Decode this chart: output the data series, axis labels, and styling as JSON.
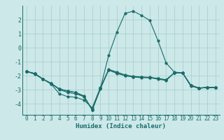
{
  "xlabel": "Humidex (Indice chaleur)",
  "background_color": "#cce8e8",
  "grid_color": "#aed0d0",
  "line_color": "#1a6b6b",
  "x_values": [
    0,
    1,
    2,
    3,
    4,
    5,
    6,
    7,
    8,
    9,
    10,
    11,
    12,
    13,
    14,
    15,
    16,
    17,
    18,
    19,
    20,
    21,
    22,
    23
  ],
  "series": [
    [
      -1.7,
      -1.85,
      -2.25,
      -2.6,
      -3.3,
      -3.5,
      -3.55,
      -3.75,
      -4.3,
      -2.85,
      -1.6,
      -1.85,
      -2.0,
      -2.1,
      -2.1,
      -2.15,
      -2.2,
      -2.3,
      -1.8,
      -1.8,
      -2.75,
      -2.9,
      -2.85,
      -2.85
    ],
    [
      -1.7,
      -1.85,
      -2.25,
      -2.55,
      -3.0,
      -3.2,
      -3.3,
      -3.5,
      -4.45,
      -2.9,
      -0.55,
      1.1,
      2.45,
      2.6,
      2.3,
      1.95,
      0.5,
      -1.1,
      -1.75,
      -1.8,
      -2.7,
      -2.9,
      -2.85,
      -2.85
    ],
    [
      -1.7,
      -1.9,
      -2.25,
      -2.6,
      -2.95,
      -3.1,
      -3.2,
      -3.5,
      -4.45,
      -2.95,
      -1.6,
      -1.8,
      -2.0,
      -2.1,
      -2.15,
      -2.15,
      -2.25,
      -2.35,
      -1.8,
      -1.8,
      -2.7,
      -2.9,
      -2.85,
      -2.85
    ],
    [
      -1.7,
      -1.85,
      -2.25,
      -2.55,
      -2.95,
      -3.1,
      -3.2,
      -3.45,
      -4.45,
      -2.9,
      -1.55,
      -1.75,
      -1.95,
      -2.05,
      -2.1,
      -2.12,
      -2.2,
      -2.3,
      -1.8,
      -1.8,
      -2.68,
      -2.88,
      -2.83,
      -2.83
    ]
  ],
  "ylim": [
    -4.8,
    3.0
  ],
  "xlim": [
    -0.5,
    23.5
  ],
  "yticks": [
    -4,
    -3,
    -2,
    -1,
    0,
    1,
    2
  ],
  "xticks": [
    0,
    1,
    2,
    3,
    4,
    5,
    6,
    7,
    8,
    9,
    10,
    11,
    12,
    13,
    14,
    15,
    16,
    17,
    18,
    19,
    20,
    21,
    22,
    23
  ],
  "tick_fontsize": 5.5,
  "xlabel_fontsize": 6.5
}
